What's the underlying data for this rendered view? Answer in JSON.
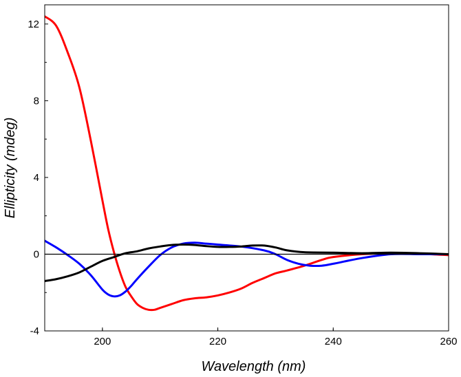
{
  "chart_data": {
    "type": "line",
    "title": "",
    "xlabel": "Wavelength (nm)",
    "ylabel": "Ellipticity (mdeg)",
    "xlim": [
      190,
      260
    ],
    "ylim": [
      -4,
      13
    ],
    "x_ticks": [
      {
        "value": 200,
        "label": "200"
      },
      {
        "value": 220,
        "label": "220"
      },
      {
        "value": 240,
        "label": "240"
      },
      {
        "value": 260,
        "label": "260"
      }
    ],
    "y_ticks": [
      {
        "value": -4,
        "label": "-4"
      },
      {
        "value": 0,
        "label": "0"
      },
      {
        "value": 4,
        "label": "4"
      },
      {
        "value": 8,
        "label": "8"
      },
      {
        "value": 12,
        "label": "12"
      }
    ],
    "zero_line": true,
    "grid": false,
    "legend": "none",
    "series": [
      {
        "color": "#ff0000",
        "x": [
          190,
          192,
          194,
          196,
          198,
          200,
          201,
          202,
          203,
          204,
          205,
          206,
          207,
          208,
          209,
          210,
          212,
          214,
          216,
          218,
          220,
          222,
          224,
          226,
          228,
          230,
          232,
          235,
          238,
          240,
          245,
          250,
          255,
          260
        ],
        "y": [
          12.4,
          11.9,
          10.5,
          8.7,
          5.9,
          2.8,
          1.3,
          0.1,
          -0.9,
          -1.7,
          -2.2,
          -2.6,
          -2.8,
          -2.9,
          -2.9,
          -2.8,
          -2.6,
          -2.4,
          -2.3,
          -2.25,
          -2.15,
          -2.0,
          -1.8,
          -1.5,
          -1.25,
          -1.0,
          -0.85,
          -0.6,
          -0.3,
          -0.15,
          0.0,
          0.05,
          0.02,
          -0.05
        ]
      },
      {
        "color": "#0000ff",
        "x": [
          190,
          192,
          194,
          196,
          198,
          200,
          201,
          202,
          203,
          204,
          205,
          206,
          208,
          210,
          212,
          214,
          216,
          218,
          220,
          224,
          228,
          230,
          232,
          234,
          236,
          238,
          240,
          245,
          250,
          255,
          260
        ],
        "y": [
          0.7,
          0.35,
          -0.05,
          -0.5,
          -1.1,
          -1.85,
          -2.1,
          -2.2,
          -2.15,
          -1.95,
          -1.65,
          -1.3,
          -0.65,
          -0.05,
          0.35,
          0.55,
          0.6,
          0.55,
          0.5,
          0.4,
          0.2,
          0.0,
          -0.3,
          -0.5,
          -0.6,
          -0.6,
          -0.5,
          -0.2,
          0.0,
          0.0,
          0.0
        ]
      },
      {
        "color": "#000000",
        "x": [
          190,
          192,
          194,
          196,
          198,
          200,
          202,
          204,
          206,
          208,
          210,
          212,
          214,
          216,
          218,
          220,
          222,
          224,
          226,
          228,
          230,
          232,
          235,
          240,
          245,
          250,
          255,
          260
        ],
        "y": [
          -1.4,
          -1.3,
          -1.15,
          -0.95,
          -0.65,
          -0.35,
          -0.15,
          0.05,
          0.15,
          0.3,
          0.4,
          0.48,
          0.5,
          0.48,
          0.42,
          0.38,
          0.38,
          0.4,
          0.45,
          0.45,
          0.35,
          0.2,
          0.1,
          0.08,
          0.05,
          0.08,
          0.05,
          0.0
        ]
      }
    ]
  }
}
